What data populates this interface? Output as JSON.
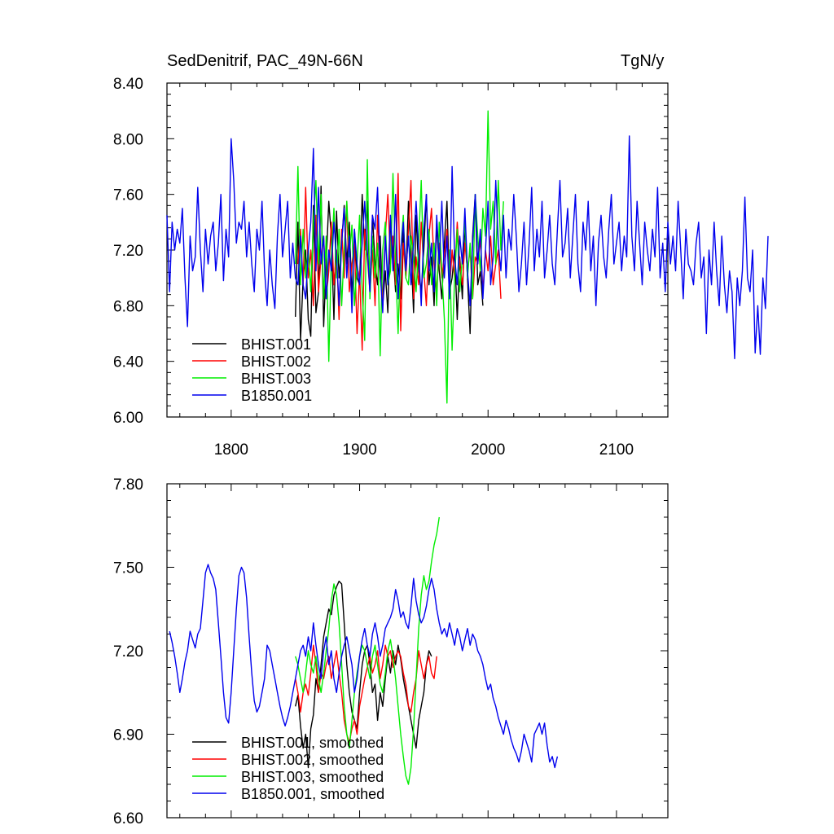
{
  "chart_data": [
    {
      "type": "line",
      "title": "SedDenitrif, PAC_49N-66N",
      "units": "TgN/y",
      "xlim": [
        1750,
        2140
      ],
      "ylim": [
        6.0,
        8.4
      ],
      "xticks": [
        "1800",
        "1900",
        "2000",
        "2100"
      ],
      "yticks": [
        "6.00",
        "6.40",
        "6.80",
        "7.20",
        "7.60",
        "8.00",
        "8.40"
      ],
      "legend_position": "lower-left",
      "series": [
        {
          "name": "BHIST.001",
          "color": "#000000",
          "x_start": 1850,
          "x_step": 2,
          "values": [
            6.72,
            7.4,
            6.55,
            7.0,
            7.2,
            6.7,
            6.58,
            7.52,
            6.75,
            6.9,
            7.66,
            6.65,
            7.1,
            7.55,
            7.3,
            6.7,
            7.48,
            7.0,
            7.25,
            7.52,
            7.1,
            7.4,
            6.85,
            7.35,
            7.0,
            6.95,
            7.6,
            7.2,
            7.55,
            6.9,
            7.45,
            7.1,
            6.95,
            7.3,
            6.8,
            7.05,
            6.75,
            7.4,
            7.2,
            6.9,
            7.1,
            6.85,
            7.35,
            7.0,
            7.55,
            7.2,
            6.75,
            7.45,
            7.05,
            6.9,
            7.2,
            7.6,
            6.95,
            7.15,
            6.8,
            7.4,
            7.05,
            6.85,
            7.25,
            7.55,
            6.9,
            7.0,
            7.2,
            6.7,
            7.15,
            6.85,
            7.4,
            7.0,
            6.6,
            7.3,
            7.6,
            6.95,
            7.05,
            6.8
          ]
        },
        {
          "name": "BHIST.002",
          "color": "#ff0000",
          "x_start": 1852,
          "x_step": 2,
          "values": [
            7.1,
            7.35,
            6.95,
            7.65,
            7.0,
            7.2,
            6.8,
            7.45,
            6.9,
            7.15,
            7.3,
            6.85,
            7.05,
            7.4,
            6.95,
            7.2,
            6.7,
            7.35,
            7.0,
            7.55,
            6.9,
            7.1,
            7.25,
            6.6,
            7.05,
            6.48,
            7.35,
            7.15,
            6.9,
            7.2,
            6.8,
            7.45,
            7.0,
            6.85,
            7.3,
            7.6,
            7.1,
            7.3,
            6.95,
            7.75,
            6.62,
            7.25,
            7.0,
            7.35,
            7.7,
            6.85,
            7.15,
            6.95,
            7.4,
            7.05,
            6.8,
            7.3,
            7.5,
            7.1,
            6.9,
            7.25,
            7.0,
            7.15,
            7.35,
            6.9,
            7.2,
            7.0,
            7.4,
            7.1,
            6.95,
            7.25,
            7.05,
            7.2,
            6.85,
            7.15,
            7.1,
            7.28,
            6.9,
            7.2,
            7.05,
            7.3,
            6.95,
            7.1,
            7.2,
            6.85
          ]
        },
        {
          "name": "BHIST.003",
          "color": "#00ee00",
          "x_start": 1850,
          "x_step": 2,
          "values": [
            7.1,
            7.8,
            6.95,
            7.35,
            7.0,
            7.2,
            6.9,
            7.4,
            7.7,
            7.1,
            7.6,
            6.85,
            7.3,
            6.4,
            7.15,
            7.5,
            7.0,
            7.35,
            6.8,
            7.2,
            7.55,
            7.15,
            7.38,
            6.8,
            7.1,
            7.45,
            6.9,
            6.55,
            7.85,
            6.85,
            7.3,
            7.0,
            7.25,
            6.44,
            7.2,
            7.4,
            6.95,
            7.05,
            7.75,
            7.1,
            6.6,
            7.2,
            7.45,
            7.0,
            6.95,
            7.3,
            7.15,
            6.9,
            7.25,
            7.7,
            7.0,
            7.1,
            7.35,
            6.95,
            7.25,
            6.8,
            7.4,
            7.05,
            6.7,
            6.1,
            7.2,
            6.48,
            7.0,
            7.35,
            6.9,
            7.15,
            7.4,
            7.0,
            7.25,
            6.85,
            7.6,
            7.3,
            7.05,
            7.5,
            7.3,
            8.2,
            7.35,
            7.55,
            7.1,
            7.7,
            7.2,
            7.55
          ]
        },
        {
          "name": "B1850.001",
          "color": "#0000ee",
          "x_start": 1750,
          "x_step": 2,
          "values": [
            7.45,
            6.9,
            7.4,
            7.2,
            7.35,
            7.25,
            7.5,
            7.0,
            6.65,
            7.3,
            7.05,
            7.15,
            7.65,
            7.2,
            6.9,
            7.35,
            7.1,
            7.3,
            7.4,
            7.05,
            7.25,
            7.6,
            6.98,
            7.35,
            7.15,
            8.0,
            7.7,
            7.25,
            7.4,
            7.35,
            7.55,
            7.15,
            7.4,
            7.1,
            6.9,
            7.35,
            7.2,
            7.55,
            7.05,
            6.8,
            7.2,
            6.95,
            6.78,
            7.3,
            7.6,
            7.15,
            7.35,
            7.55,
            7.0,
            7.25,
            7.0,
            6.95,
            7.3,
            6.95,
            6.85,
            7.2,
            7.4,
            7.93,
            7.05,
            7.65,
            7.1,
            7.3,
            6.85,
            7.2,
            7.05,
            7.4,
            7.15,
            6.8,
            7.25,
            7.5,
            7.0,
            7.3,
            6.75,
            7.35,
            7.1,
            6.95,
            7.25,
            7.55,
            7.2,
            6.9,
            7.45,
            7.35,
            7.65,
            7.05,
            6.75,
            7.3,
            6.95,
            7.45,
            7.05,
            7.6,
            6.85,
            7.2,
            7.4,
            7.05,
            7.3,
            6.95,
            7.25,
            7.55,
            7.2,
            6.8,
            7.35,
            7.6,
            7.05,
            7.25,
            6.9,
            7.45,
            7.1,
            7.55,
            7.0,
            7.3,
            6.85,
            7.8,
            7.15,
            6.95,
            7.3,
            7.1,
            7.5,
            7.05,
            6.8,
            7.25,
            7.6,
            7.1,
            7.35,
            6.85,
            7.2,
            7.55,
            6.95,
            7.15,
            7.7,
            7.25,
            7.05,
            7.45,
            7.0,
            7.35,
            7.2,
            7.6,
            7.3,
            6.9,
            7.1,
            7.4,
            6.95,
            7.25,
            7.65,
            7.05,
            7.35,
            7.15,
            7.55,
            7.0,
            7.2,
            7.45,
            7.1,
            6.95,
            7.35,
            7.7,
            7.15,
            7.25,
            7.5,
            7.0,
            7.3,
            7.6,
            7.1,
            6.9,
            7.4,
            7.2,
            7.55,
            7.05,
            7.3,
            6.8,
            7.25,
            7.45,
            7.15,
            7.0,
            7.35,
            7.6,
            7.1,
            7.25,
            7.4,
            7.05,
            7.3,
            7.15,
            8.02,
            7.3,
            7.05,
            7.55,
            7.25,
            6.95,
            7.4,
            7.2,
            7.05,
            7.35,
            7.15,
            7.65,
            7.0,
            7.25,
            6.9,
            7.4,
            7.1,
            7.3,
            7.05,
            7.55,
            7.2,
            6.85,
            7.35,
            7.1,
            7.05,
            6.95,
            7.25,
            7.4,
            7.0,
            7.15,
            6.6,
            7.2,
            6.95,
            7.4,
            7.05,
            6.8,
            7.3,
            6.95,
            6.75,
            7.05,
            6.9,
            6.42,
            7.0,
            6.8,
            7.05,
            7.58,
            7.0,
            6.9,
            7.2,
            6.46,
            6.8,
            6.45,
            7.0,
            6.78,
            7.3
          ]
        }
      ]
    },
    {
      "type": "line",
      "xlim": [
        1750,
        2140
      ],
      "ylim": [
        6.6,
        7.8
      ],
      "yticks": [
        "6.60",
        "6.90",
        "7.20",
        "7.50",
        "7.80"
      ],
      "legend_position": "lower-left",
      "series": [
        {
          "name": "BHIST.001, smoothed",
          "color": "#000000",
          "x_start": 1850,
          "x_step": 2,
          "values": [
            7.0,
            7.04,
            6.93,
            6.85,
            6.9,
            6.78,
            6.92,
            6.97,
            7.1,
            7.05,
            7.15,
            7.25,
            7.3,
            7.35,
            7.33,
            7.4,
            7.43,
            7.45,
            7.44,
            7.3,
            7.15,
            7.05,
            6.98,
            6.95,
            6.92,
            7.05,
            7.15,
            7.2,
            7.22,
            7.15,
            7.05,
            7.08,
            6.95,
            7.05,
            7.0,
            7.1,
            7.18,
            7.12,
            7.2,
            7.15,
            7.22,
            7.17,
            7.1,
            7.05,
            7.0,
            6.95,
            6.9,
            6.85,
            6.95,
            7.0,
            7.05,
            7.15,
            7.2,
            7.18
          ]
        },
        {
          "name": "BHIST.002, smoothed",
          "color": "#ff0000",
          "x_start": 1850,
          "x_step": 2,
          "values": [
            7.1,
            7.05,
            6.98,
            7.05,
            7.08,
            7.04,
            7.12,
            7.22,
            7.15,
            7.05,
            7.12,
            7.1,
            7.15,
            7.18,
            7.1,
            7.15,
            7.2,
            7.12,
            7.05,
            6.95,
            6.9,
            6.87,
            6.92,
            6.95,
            6.9,
            7.0,
            7.05,
            7.1,
            7.14,
            7.18,
            7.12,
            7.15,
            7.2,
            7.1,
            7.15,
            7.22,
            7.18,
            7.2,
            7.14,
            7.18,
            7.2,
            7.18,
            7.12,
            7.08,
            7.0,
            6.98,
            7.05,
            7.1,
            7.2,
            7.15,
            7.1,
            7.15,
            7.18,
            7.12,
            7.1,
            7.18
          ]
        },
        {
          "name": "BHIST.003, smoothed",
          "color": "#00ee00",
          "x_start": 1850,
          "x_step": 2,
          "values": [
            7.18,
            7.15,
            7.1,
            7.05,
            7.12,
            7.2,
            7.15,
            7.12,
            7.18,
            7.1,
            7.05,
            7.12,
            7.2,
            7.28,
            7.38,
            7.44,
            7.4,
            7.3,
            7.15,
            7.0,
            6.9,
            6.85,
            6.95,
            7.05,
            7.12,
            7.18,
            7.22,
            7.2,
            7.15,
            7.1,
            7.18,
            7.22,
            7.15,
            7.08,
            7.05,
            7.12,
            7.2,
            7.24,
            7.18,
            7.1,
            7.0,
            6.9,
            6.82,
            6.75,
            6.72,
            6.78,
            6.92,
            7.1,
            7.28,
            7.4,
            7.47,
            7.42,
            7.45,
            7.52,
            7.58,
            7.62,
            7.68
          ]
        },
        {
          "name": "B1850.001, smoothed",
          "color": "#0000ee",
          "x_start": 1752,
          "x_step": 2,
          "values": [
            7.27,
            7.23,
            7.18,
            7.12,
            7.05,
            7.1,
            7.16,
            7.2,
            7.27,
            7.24,
            7.21,
            7.26,
            7.28,
            7.38,
            7.48,
            7.51,
            7.48,
            7.46,
            7.42,
            7.3,
            7.18,
            7.05,
            6.96,
            6.94,
            7.05,
            7.2,
            7.35,
            7.47,
            7.5,
            7.48,
            7.39,
            7.25,
            7.12,
            7.02,
            6.98,
            7.0,
            7.05,
            7.1,
            7.22,
            7.2,
            7.15,
            7.1,
            7.05,
            7.0,
            6.96,
            6.93,
            6.96,
            7.0,
            7.05,
            7.1,
            7.15,
            7.2,
            7.22,
            7.18,
            7.25,
            7.2,
            7.3,
            7.22,
            7.15,
            7.1,
            7.2,
            7.25,
            7.15,
            7.2,
            7.1,
            7.05,
            7.12,
            7.18,
            7.22,
            7.25,
            7.2,
            7.15,
            7.05,
            7.1,
            7.18,
            7.24,
            7.28,
            7.22,
            7.18,
            7.26,
            7.3,
            7.25,
            7.18,
            7.22,
            7.28,
            7.3,
            7.32,
            7.35,
            7.42,
            7.38,
            7.32,
            7.34,
            7.3,
            7.28,
            7.36,
            7.46,
            7.38,
            7.33,
            7.3,
            7.32,
            7.36,
            7.42,
            7.46,
            7.42,
            7.35,
            7.3,
            7.26,
            7.28,
            7.25,
            7.3,
            7.26,
            7.22,
            7.28,
            7.25,
            7.2,
            7.24,
            7.28,
            7.22,
            7.26,
            7.24,
            7.2,
            7.18,
            7.15,
            7.1,
            7.06,
            7.08,
            7.03,
            7.0,
            6.96,
            6.93,
            6.9,
            6.95,
            6.92,
            6.88,
            6.85,
            6.83,
            6.8,
            6.84,
            6.9,
            6.87,
            6.84,
            6.8,
            6.9,
            6.92,
            6.94,
            6.9,
            6.94,
            6.86,
            6.8,
            6.82,
            6.78,
            6.82
          ]
        }
      ]
    }
  ]
}
